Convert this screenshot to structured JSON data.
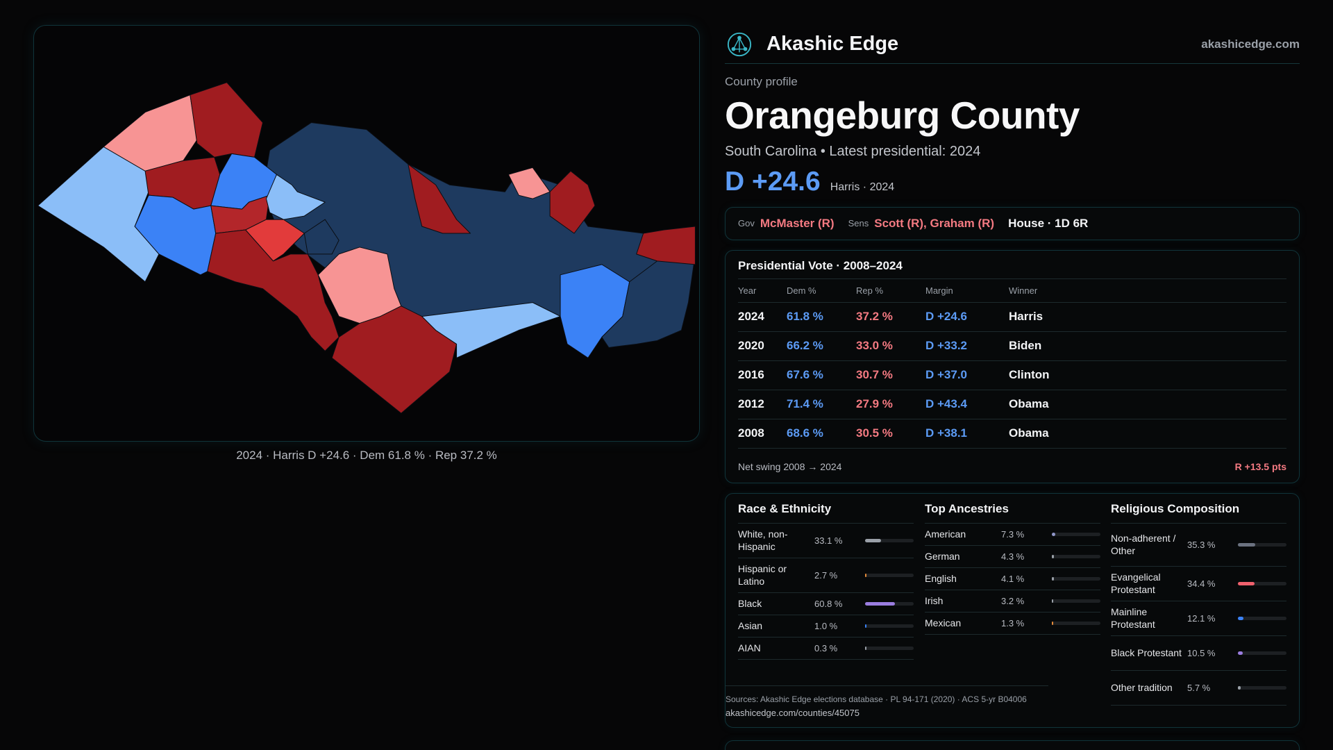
{
  "map": {
    "caption": "2024 · Harris D +24.6 · Dem 61.8 % · Rep 37.2 %",
    "colors": {
      "safe_d": "#1e3a5f",
      "likely_d": "#3b82f6",
      "lean_d": "#8bbef8",
      "lean_r": "#f79494",
      "likely_r": "#e23b3b",
      "safe_r": "#a01c20"
    }
  },
  "brand": {
    "name": "Akashic Edge",
    "url": "akashicedge.com",
    "logo_icon": "network-globe-icon"
  },
  "profile": {
    "kicker": "County profile",
    "title": "Orangeburg County",
    "subtitle": "South Carolina • Latest presidential: 2024",
    "margin": "D +24.6",
    "margin_note": "Harris · 2024"
  },
  "officials": {
    "gov_label": "Gov",
    "gov": "McMaster (R)",
    "sens_label": "Sens",
    "sens": "Scott (R), Graham (R)",
    "house": "House · 1D 6R"
  },
  "presidential": {
    "title": "Presidential Vote · 2008–2024",
    "headers": [
      "Year",
      "Dem %",
      "Rep %",
      "Margin",
      "Winner"
    ],
    "rows": [
      {
        "year": "2024",
        "dem": "61.8 %",
        "rep": "37.2 %",
        "margin": "D +24.6",
        "winner": "Harris"
      },
      {
        "year": "2020",
        "dem": "66.2 %",
        "rep": "33.0 %",
        "margin": "D +33.2",
        "winner": "Biden"
      },
      {
        "year": "2016",
        "dem": "67.6 %",
        "rep": "30.7 %",
        "margin": "D +37.0",
        "winner": "Clinton"
      },
      {
        "year": "2012",
        "dem": "71.4 %",
        "rep": "27.9 %",
        "margin": "D +43.4",
        "winner": "Obama"
      },
      {
        "year": "2008",
        "dem": "68.6 %",
        "rep": "30.5 %",
        "margin": "D +38.1",
        "winner": "Obama"
      }
    ],
    "swing_label": "Net swing 2008 → 2024",
    "swing_value": "R +13.5 pts"
  },
  "race": {
    "title": "Race & Ethnicity",
    "items": [
      {
        "label": "White, non-Hispanic",
        "value": "33.1 %",
        "pct": 33.1,
        "color": "#9aa0a8"
      },
      {
        "label": "Hispanic or Latino",
        "value": "2.7 %",
        "pct": 2.7,
        "color": "#e58b3a"
      },
      {
        "label": "Black",
        "value": "60.8 %",
        "pct": 60.8,
        "color": "#9b7de0"
      },
      {
        "label": "Asian",
        "value": "1.0 %",
        "pct": 1.0,
        "color": "#3b82f6"
      },
      {
        "label": "AIAN",
        "value": "0.3 %",
        "pct": 0.3,
        "color": "#9aa0a8"
      }
    ]
  },
  "ancestry": {
    "title": "Top Ancestries",
    "items": [
      {
        "label": "American",
        "value": "7.3 %",
        "pct": 7.3,
        "color": "#8f96c8"
      },
      {
        "label": "German",
        "value": "4.3 %",
        "pct": 4.3,
        "color": "#9aa0a8"
      },
      {
        "label": "English",
        "value": "4.1 %",
        "pct": 4.1,
        "color": "#9aa0a8"
      },
      {
        "label": "Irish",
        "value": "3.2 %",
        "pct": 3.2,
        "color": "#9aa0a8"
      },
      {
        "label": "Mexican",
        "value": "1.3 %",
        "pct": 1.3,
        "color": "#e58b3a"
      }
    ]
  },
  "religion": {
    "title": "Religious Composition",
    "items": [
      {
        "label": "Non-adherent / Other",
        "value": "35.3 %",
        "pct": 35.3,
        "color": "#6b7280"
      },
      {
        "label": "Evangelical Protestant",
        "value": "34.4 %",
        "pct": 34.4,
        "color": "#f0616d"
      },
      {
        "label": "Mainline Protestant",
        "value": "12.1 %",
        "pct": 12.1,
        "color": "#3b82f6"
      },
      {
        "label": "Black Protestant",
        "value": "10.5 %",
        "pct": 10.5,
        "color": "#9b7de0"
      },
      {
        "label": "Other tradition",
        "value": "5.7 %",
        "pct": 5.7,
        "color": "#9aa0a8"
      }
    ]
  },
  "sources": {
    "line1": "Sources: Akashic Edge elections database · PL 94-171 (2020) · ACS 5-yr B04006",
    "line2": "akashicedge.com/counties/45075"
  }
}
